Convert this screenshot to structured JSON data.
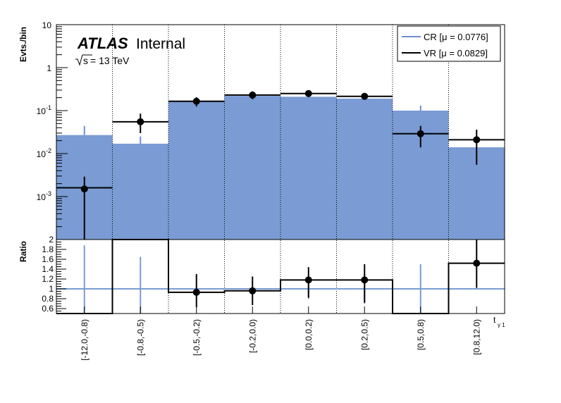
{
  "labels": {
    "atlas": "ATLAS",
    "internal": "Internal",
    "sqrt_s": "s",
    "sqrt_s_value": " = 13 TeV",
    "ylabel_top": "Evts./bin",
    "ylabel_bottom": "Ratio",
    "xlabel": "t",
    "xlabel_sub": "γ 1"
  },
  "colors": {
    "cr_fill": "#7a9bd3",
    "cr_line": "#6d8fd0",
    "vr": "#000000",
    "ratio_line": "#7a9bd3"
  },
  "chart_data": [
    {
      "type": "bar",
      "scale": "log",
      "ylabel": "Evts./bin",
      "ylim": [
        0.0001,
        10
      ],
      "yticks": [
        {
          "v": 10,
          "label": "10"
        },
        {
          "v": 1,
          "label": "1"
        },
        {
          "v": 0.1,
          "label": "10",
          "exp": "-1"
        },
        {
          "v": 0.01,
          "label": "10",
          "exp": "-2"
        },
        {
          "v": 0.001,
          "label": "10",
          "exp": "-3"
        }
      ],
      "categories": [
        "[-12.0,-0.8)",
        "[-0.8,-0.5)",
        "[-0.5,-0.2)",
        "[-0.2,0.0)",
        "[0.0,0.2)",
        "[0.2,0.5)",
        "[0.5,0.8)",
        "[0.8,12.0)"
      ],
      "legend": [
        {
          "name": "CR [μ = 0.0776]",
          "style": "cr"
        },
        {
          "name": "VR [μ = 0.0829]",
          "style": "vr"
        }
      ],
      "legend_position": "top-right",
      "series": [
        {
          "name": "CR [μ = 0.0776]",
          "kind": "filled-histogram",
          "values": [
            0.027,
            0.017,
            0.16,
            0.22,
            0.21,
            0.19,
            0.1,
            0.014
          ],
          "err_hi": [
            0.044,
            0.025,
            0.19,
            0.25,
            0.24,
            0.21,
            0.13,
            0.0
          ]
        },
        {
          "name": "VR [μ = 0.0829]",
          "kind": "points-with-errors",
          "values": [
            0.0015,
            0.055,
            0.165,
            0.23,
            0.25,
            0.215,
            0.029,
            0.021
          ],
          "err_lo": [
            0.0001,
            0.03,
            0.125,
            0.185,
            0.215,
            0.18,
            0.014,
            0.0055
          ],
          "err_hi": [
            0.0029,
            0.085,
            0.205,
            0.28,
            0.29,
            0.25,
            0.044,
            0.036
          ],
          "step_values": [
            0.0016,
            0.055,
            0.165,
            0.23,
            0.25,
            0.215,
            0.029,
            0.021
          ]
        }
      ]
    },
    {
      "type": "line",
      "ylabel": "Ratio",
      "ylim": [
        0.5,
        2.0
      ],
      "yticks": [
        {
          "v": 0.6,
          "label": "0.6"
        },
        {
          "v": 0.8,
          "label": "0.8"
        },
        {
          "v": 1.0,
          "label": "1"
        },
        {
          "v": 1.2,
          "label": "1.2"
        },
        {
          "v": 1.4,
          "label": "1.4"
        },
        {
          "v": 1.6,
          "label": "1.6"
        },
        {
          "v": 1.8,
          "label": "1.8"
        },
        {
          "v": 2.0,
          "label": "2"
        }
      ],
      "reference_line": 1.0,
      "ratio_step": [
        0.0,
        2.2,
        0.93,
        0.96,
        1.18,
        1.18,
        0.0,
        1.52
      ],
      "ratio_points": [
        {
          "bin": 2,
          "y": 0.93,
          "lo": 0.63,
          "hi": 1.3
        },
        {
          "bin": 3,
          "y": 0.96,
          "lo": 0.67,
          "hi": 1.25
        },
        {
          "bin": 4,
          "y": 1.18,
          "lo": 0.82,
          "hi": 1.44
        },
        {
          "bin": 5,
          "y": 1.18,
          "lo": 0.72,
          "hi": 1.5
        },
        {
          "bin": 7,
          "y": 1.52,
          "lo": 1.02,
          "hi": 2.0
        }
      ],
      "cr_error_bars": [
        {
          "bin": 0,
          "lo": 0.5,
          "hi": 1.88
        },
        {
          "bin": 1,
          "lo": 0.5,
          "hi": 1.65
        },
        {
          "bin": 4,
          "lo": 0.8,
          "hi": 1.2
        },
        {
          "bin": 5,
          "lo": 0.7,
          "hi": 1.3
        },
        {
          "bin": 6,
          "lo": 0.5,
          "hi": 1.5
        }
      ]
    }
  ]
}
